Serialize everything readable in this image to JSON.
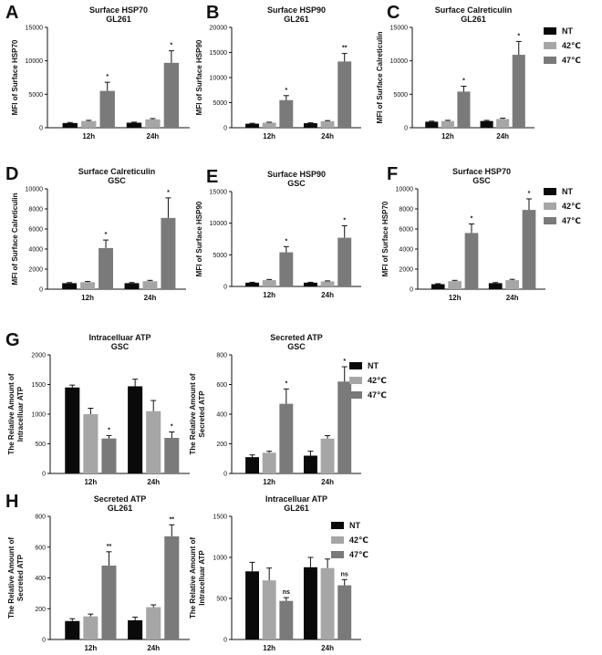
{
  "colors": {
    "NT": "#0a0a0a",
    "42C": "#a6a6a6",
    "47C": "#7a7a7a"
  },
  "legend_items": [
    "NT",
    "42℃",
    "47℃"
  ],
  "chart_data": [
    {
      "type": "bar",
      "panel": "A",
      "title": "Surface HSP70",
      "subtitle": "GL261",
      "ylabel": "MFI of Surface HSP70",
      "categories": [
        "12h",
        "24h"
      ],
      "ylim": [
        0,
        15000
      ],
      "yticks": [
        "0",
        "5000",
        "10000",
        "15000"
      ],
      "series": [
        {
          "name": "NT",
          "values": [
            700,
            750
          ],
          "errors": [
            80,
            80
          ]
        },
        {
          "name": "42℃",
          "values": [
            1000,
            1250
          ],
          "errors": [
            100,
            120
          ]
        },
        {
          "name": "47℃",
          "values": [
            5500,
            9700
          ],
          "errors": [
            1300,
            1800
          ]
        }
      ],
      "annotations": [
        "*",
        "*"
      ]
    },
    {
      "type": "bar",
      "panel": "B",
      "title": "Surface HSP90",
      "subtitle": "GL261",
      "ylabel": "MFI of Surface HSP90",
      "categories": [
        "12h",
        "24h"
      ],
      "ylim": [
        0,
        20000
      ],
      "yticks": [
        "0",
        "5000",
        "10000",
        "15000",
        "20000"
      ],
      "series": [
        {
          "name": "NT",
          "values": [
            800,
            900
          ],
          "errors": [
            80,
            80
          ]
        },
        {
          "name": "42℃",
          "values": [
            1000,
            1300
          ],
          "errors": [
            100,
            120
          ]
        },
        {
          "name": "47℃",
          "values": [
            5500,
            13200
          ],
          "errors": [
            900,
            1600
          ]
        }
      ],
      "annotations": [
        "*",
        "**"
      ]
    },
    {
      "type": "bar",
      "panel": "C",
      "title": "Surface Calreticulin",
      "subtitle": "GL261",
      "ylabel": "MFI of Surface Calreticulin",
      "categories": [
        "12h",
        "24h"
      ],
      "ylim": [
        0,
        15000
      ],
      "yticks": [
        "0",
        "5000",
        "10000",
        "15000"
      ],
      "series": [
        {
          "name": "NT",
          "values": [
            900,
            1000
          ],
          "errors": [
            80,
            100
          ]
        },
        {
          "name": "42℃",
          "values": [
            1000,
            1300
          ],
          "errors": [
            100,
            120
          ]
        },
        {
          "name": "47℃",
          "values": [
            5400,
            10900
          ],
          "errors": [
            800,
            2000
          ]
        }
      ],
      "annotations": [
        "*",
        "*"
      ]
    },
    {
      "type": "bar",
      "panel": "D",
      "title": "Surface Calreticulin",
      "subtitle": "GSC",
      "ylabel": "MFI of Surface Calreticulin",
      "categories": [
        "12h",
        "24h"
      ],
      "ylim": [
        0,
        10000
      ],
      "yticks": [
        "0",
        "2000",
        "4000",
        "6000",
        "8000",
        "10000"
      ],
      "series": [
        {
          "name": "NT",
          "values": [
            600,
            600
          ],
          "errors": [
            60,
            60
          ]
        },
        {
          "name": "42℃",
          "values": [
            700,
            800
          ],
          "errors": [
            70,
            80
          ]
        },
        {
          "name": "47℃",
          "values": [
            4100,
            7100
          ],
          "errors": [
            800,
            2000
          ]
        }
      ],
      "annotations": [
        "*",
        "*"
      ]
    },
    {
      "type": "bar",
      "panel": "E",
      "title": "Surface HSP90",
      "subtitle": "GSC",
      "ylabel": "MFI of Surface HSP90",
      "categories": [
        "12h",
        "24h"
      ],
      "ylim": [
        0,
        15000
      ],
      "yticks": [
        "0",
        "5000",
        "10000",
        "15000"
      ],
      "series": [
        {
          "name": "NT",
          "values": [
            600,
            600
          ],
          "errors": [
            60,
            60
          ]
        },
        {
          "name": "42℃",
          "values": [
            1000,
            800
          ],
          "errors": [
            100,
            80
          ]
        },
        {
          "name": "47℃",
          "values": [
            5400,
            7700
          ],
          "errors": [
            900,
            1900
          ]
        }
      ],
      "annotations": [
        "*",
        "*"
      ]
    },
    {
      "type": "bar",
      "panel": "F",
      "title": "Surface HSP70",
      "subtitle": "GSC",
      "ylabel": "MFI of Surface HSP70",
      "categories": [
        "12h",
        "24h"
      ],
      "ylim": [
        0,
        10000
      ],
      "yticks": [
        "0",
        "2000",
        "4000",
        "6000",
        "8000",
        "10000"
      ],
      "series": [
        {
          "name": "NT",
          "values": [
            500,
            600
          ],
          "errors": [
            50,
            60
          ]
        },
        {
          "name": "42℃",
          "values": [
            800,
            900
          ],
          "errors": [
            80,
            80
          ]
        },
        {
          "name": "47℃",
          "values": [
            5600,
            7900
          ],
          "errors": [
            900,
            1100
          ]
        }
      ],
      "annotations": [
        "*",
        "*"
      ]
    },
    {
      "type": "bar",
      "panel": "G",
      "title": "Intracelluar ATP",
      "subtitle": "GSC",
      "ylabel": "The Relative Amount of Intracelluar ATP",
      "categories": [
        "12h",
        "24h"
      ],
      "ylim": [
        0,
        2000
      ],
      "yticks": [
        "0",
        "500",
        "1000",
        "1500",
        "2000"
      ],
      "series": [
        {
          "name": "NT",
          "values": [
            1450,
            1470
          ],
          "errors": [
            40,
            120
          ]
        },
        {
          "name": "42℃",
          "values": [
            1000,
            1050
          ],
          "errors": [
            100,
            180
          ]
        },
        {
          "name": "47℃",
          "values": [
            590,
            600
          ],
          "errors": [
            50,
            100
          ]
        }
      ],
      "annotations": [
        "*",
        "*"
      ]
    },
    {
      "type": "bar",
      "panel": "",
      "title": "Secreted ATP",
      "subtitle": "GSC",
      "ylabel": "The Relative Amount of Secreted ATP",
      "categories": [
        "12h",
        "24h"
      ],
      "ylim": [
        0,
        800
      ],
      "yticks": [
        "0",
        "200",
        "400",
        "600",
        "800"
      ],
      "series": [
        {
          "name": "NT",
          "values": [
            110,
            120
          ],
          "errors": [
            15,
            30
          ]
        },
        {
          "name": "42℃",
          "values": [
            140,
            235
          ],
          "errors": [
            10,
            20
          ]
        },
        {
          "name": "47℃",
          "values": [
            470,
            620
          ],
          "errors": [
            100,
            100
          ]
        }
      ],
      "annotations": [
        "*",
        "*"
      ]
    },
    {
      "type": "bar",
      "panel": "H",
      "title": "Secreted ATP",
      "subtitle": "GL261",
      "ylabel": "The Relative Amount of Secreted ATP",
      "categories": [
        "12h",
        "24h"
      ],
      "ylim": [
        0,
        800
      ],
      "yticks": [
        "0",
        "200",
        "400",
        "600",
        "800"
      ],
      "series": [
        {
          "name": "NT",
          "values": [
            120,
            125
          ],
          "errors": [
            15,
            20
          ]
        },
        {
          "name": "42℃",
          "values": [
            150,
            210
          ],
          "errors": [
            15,
            15
          ]
        },
        {
          "name": "47℃",
          "values": [
            480,
            670
          ],
          "errors": [
            90,
            75
          ]
        }
      ],
      "annotations": [
        "**",
        "**"
      ]
    },
    {
      "type": "bar",
      "panel": "",
      "title": "Intracelluar ATP",
      "subtitle": "GL261",
      "ylabel": "The Relative Amount of Intracelluar ATP",
      "categories": [
        "12h",
        "24h"
      ],
      "ylim": [
        0,
        1500
      ],
      "yticks": [
        "0",
        "500",
        "1000",
        "1500"
      ],
      "series": [
        {
          "name": "NT",
          "values": [
            830,
            880
          ],
          "errors": [
            110,
            120
          ]
        },
        {
          "name": "42℃",
          "values": [
            720,
            870
          ],
          "errors": [
            150,
            110
          ]
        },
        {
          "name": "47℃",
          "values": [
            470,
            660
          ],
          "errors": [
            40,
            70
          ]
        }
      ],
      "annotations": [
        "ns",
        "ns"
      ]
    }
  ]
}
